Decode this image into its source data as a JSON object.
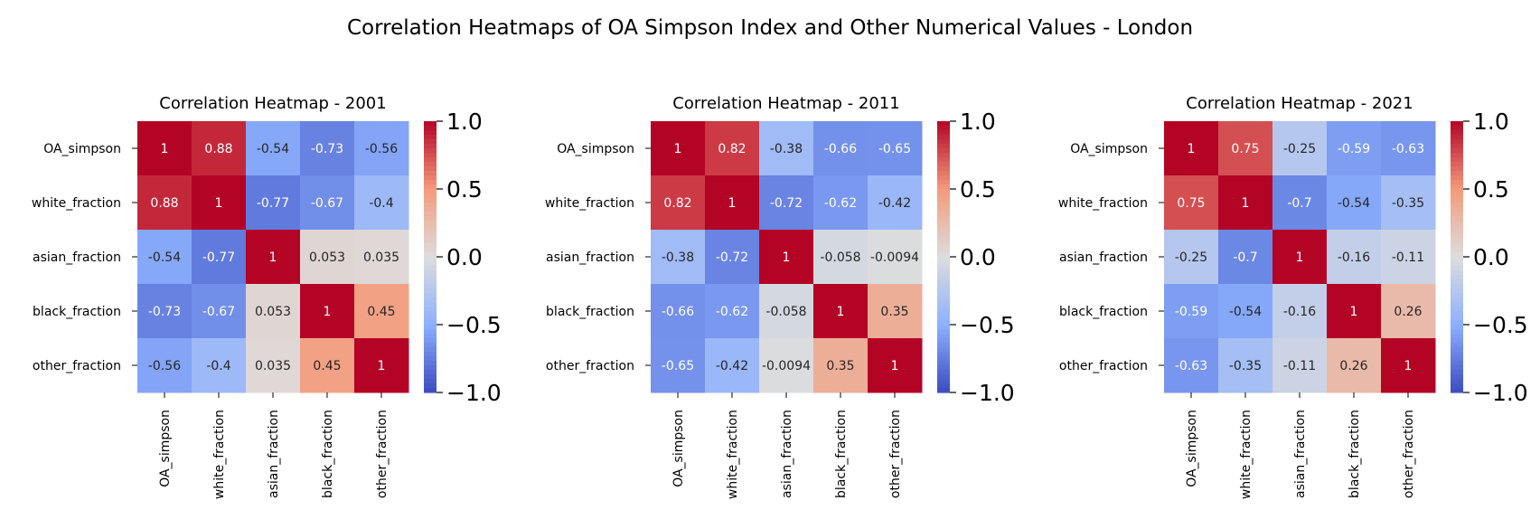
{
  "figure": {
    "suptitle": "Correlation Heatmaps of OA Simpson Index and Other Numerical Values - London"
  },
  "chart_data": [
    {
      "type": "heatmap",
      "title": "Correlation Heatmap - 2001",
      "row_labels": [
        "OA_simpson",
        "white_fraction",
        "asian_fraction",
        "black_fraction",
        "other_fraction"
      ],
      "col_labels": [
        "OA_simpson",
        "white_fraction",
        "asian_fraction",
        "black_fraction",
        "other_fraction"
      ],
      "annotations": [
        [
          "1",
          "0.88",
          "-0.54",
          "-0.73",
          "-0.56"
        ],
        [
          "0.88",
          "1",
          "-0.77",
          "-0.67",
          "-0.4"
        ],
        [
          "-0.54",
          "-0.77",
          "1",
          "0.053",
          "0.035"
        ],
        [
          "-0.73",
          "-0.67",
          "0.053",
          "1",
          "0.45"
        ],
        [
          "-0.56",
          "-0.4",
          "0.035",
          "0.45",
          "1"
        ]
      ],
      "values": [
        [
          1,
          0.88,
          -0.54,
          -0.73,
          -0.56
        ],
        [
          0.88,
          1,
          -0.77,
          -0.67,
          -0.4
        ],
        [
          -0.54,
          -0.77,
          1,
          0.053,
          0.035
        ],
        [
          -0.73,
          -0.67,
          0.053,
          1,
          0.45
        ],
        [
          -0.56,
          -0.4,
          0.035,
          0.45,
          1
        ]
      ],
      "colormap": "coolwarm",
      "vmin": -1.0,
      "vmax": 1.0,
      "colorbar_ticks": [
        1.0,
        0.5,
        0.0,
        -0.5,
        -1.0
      ],
      "colorbar_labels": [
        "1.0",
        "0.5",
        "0.0",
        "−0.5",
        "−1.0"
      ]
    },
    {
      "type": "heatmap",
      "title": "Correlation Heatmap - 2011",
      "row_labels": [
        "OA_simpson",
        "white_fraction",
        "asian_fraction",
        "black_fraction",
        "other_fraction"
      ],
      "col_labels": [
        "OA_simpson",
        "white_fraction",
        "asian_fraction",
        "black_fraction",
        "other_fraction"
      ],
      "annotations": [
        [
          "1",
          "0.82",
          "-0.38",
          "-0.66",
          "-0.65"
        ],
        [
          "0.82",
          "1",
          "-0.72",
          "-0.62",
          "-0.42"
        ],
        [
          "-0.38",
          "-0.72",
          "1",
          "-0.058",
          "-0.0094"
        ],
        [
          "-0.66",
          "-0.62",
          "-0.058",
          "1",
          "0.35"
        ],
        [
          "-0.65",
          "-0.42",
          "-0.0094",
          "0.35",
          "1"
        ]
      ],
      "values": [
        [
          1,
          0.82,
          -0.38,
          -0.66,
          -0.65
        ],
        [
          0.82,
          1,
          -0.72,
          -0.62,
          -0.42
        ],
        [
          -0.38,
          -0.72,
          1,
          -0.058,
          -0.0094
        ],
        [
          -0.66,
          -0.62,
          -0.058,
          1,
          0.35
        ],
        [
          -0.65,
          -0.42,
          -0.0094,
          0.35,
          1
        ]
      ],
      "colormap": "coolwarm",
      "vmin": -1.0,
      "vmax": 1.0,
      "colorbar_ticks": [
        1.0,
        0.5,
        0.0,
        -0.5,
        -1.0
      ],
      "colorbar_labels": [
        "1.0",
        "0.5",
        "0.0",
        "−0.5",
        "−1.0"
      ]
    },
    {
      "type": "heatmap",
      "title": "Correlation Heatmap - 2021",
      "row_labels": [
        "OA_simpson",
        "white_fraction",
        "asian_fraction",
        "black_fraction",
        "other_fraction"
      ],
      "col_labels": [
        "OA_simpson",
        "white_fraction",
        "asian_fraction",
        "black_fraction",
        "other_fraction"
      ],
      "annotations": [
        [
          "1",
          "0.75",
          "-0.25",
          "-0.59",
          "-0.63"
        ],
        [
          "0.75",
          "1",
          "-0.7",
          "-0.54",
          "-0.35"
        ],
        [
          "-0.25",
          "-0.7",
          "1",
          "-0.16",
          "-0.11"
        ],
        [
          "-0.59",
          "-0.54",
          "-0.16",
          "1",
          "0.26"
        ],
        [
          "-0.63",
          "-0.35",
          "-0.11",
          "0.26",
          "1"
        ]
      ],
      "values": [
        [
          1,
          0.75,
          -0.25,
          -0.59,
          -0.63
        ],
        [
          0.75,
          1,
          -0.7,
          -0.54,
          -0.35
        ],
        [
          -0.25,
          -0.7,
          1,
          -0.16,
          -0.11
        ],
        [
          -0.59,
          -0.54,
          -0.16,
          1,
          0.26
        ],
        [
          -0.63,
          -0.35,
          -0.11,
          0.26,
          1
        ]
      ],
      "colormap": "coolwarm",
      "vmin": -1.0,
      "vmax": 1.0,
      "colorbar_ticks": [
        1.0,
        0.5,
        0.0,
        -0.5,
        -1.0
      ],
      "colorbar_labels": [
        "1.0",
        "0.5",
        "0.0",
        "−0.5",
        "−1.0"
      ]
    }
  ]
}
